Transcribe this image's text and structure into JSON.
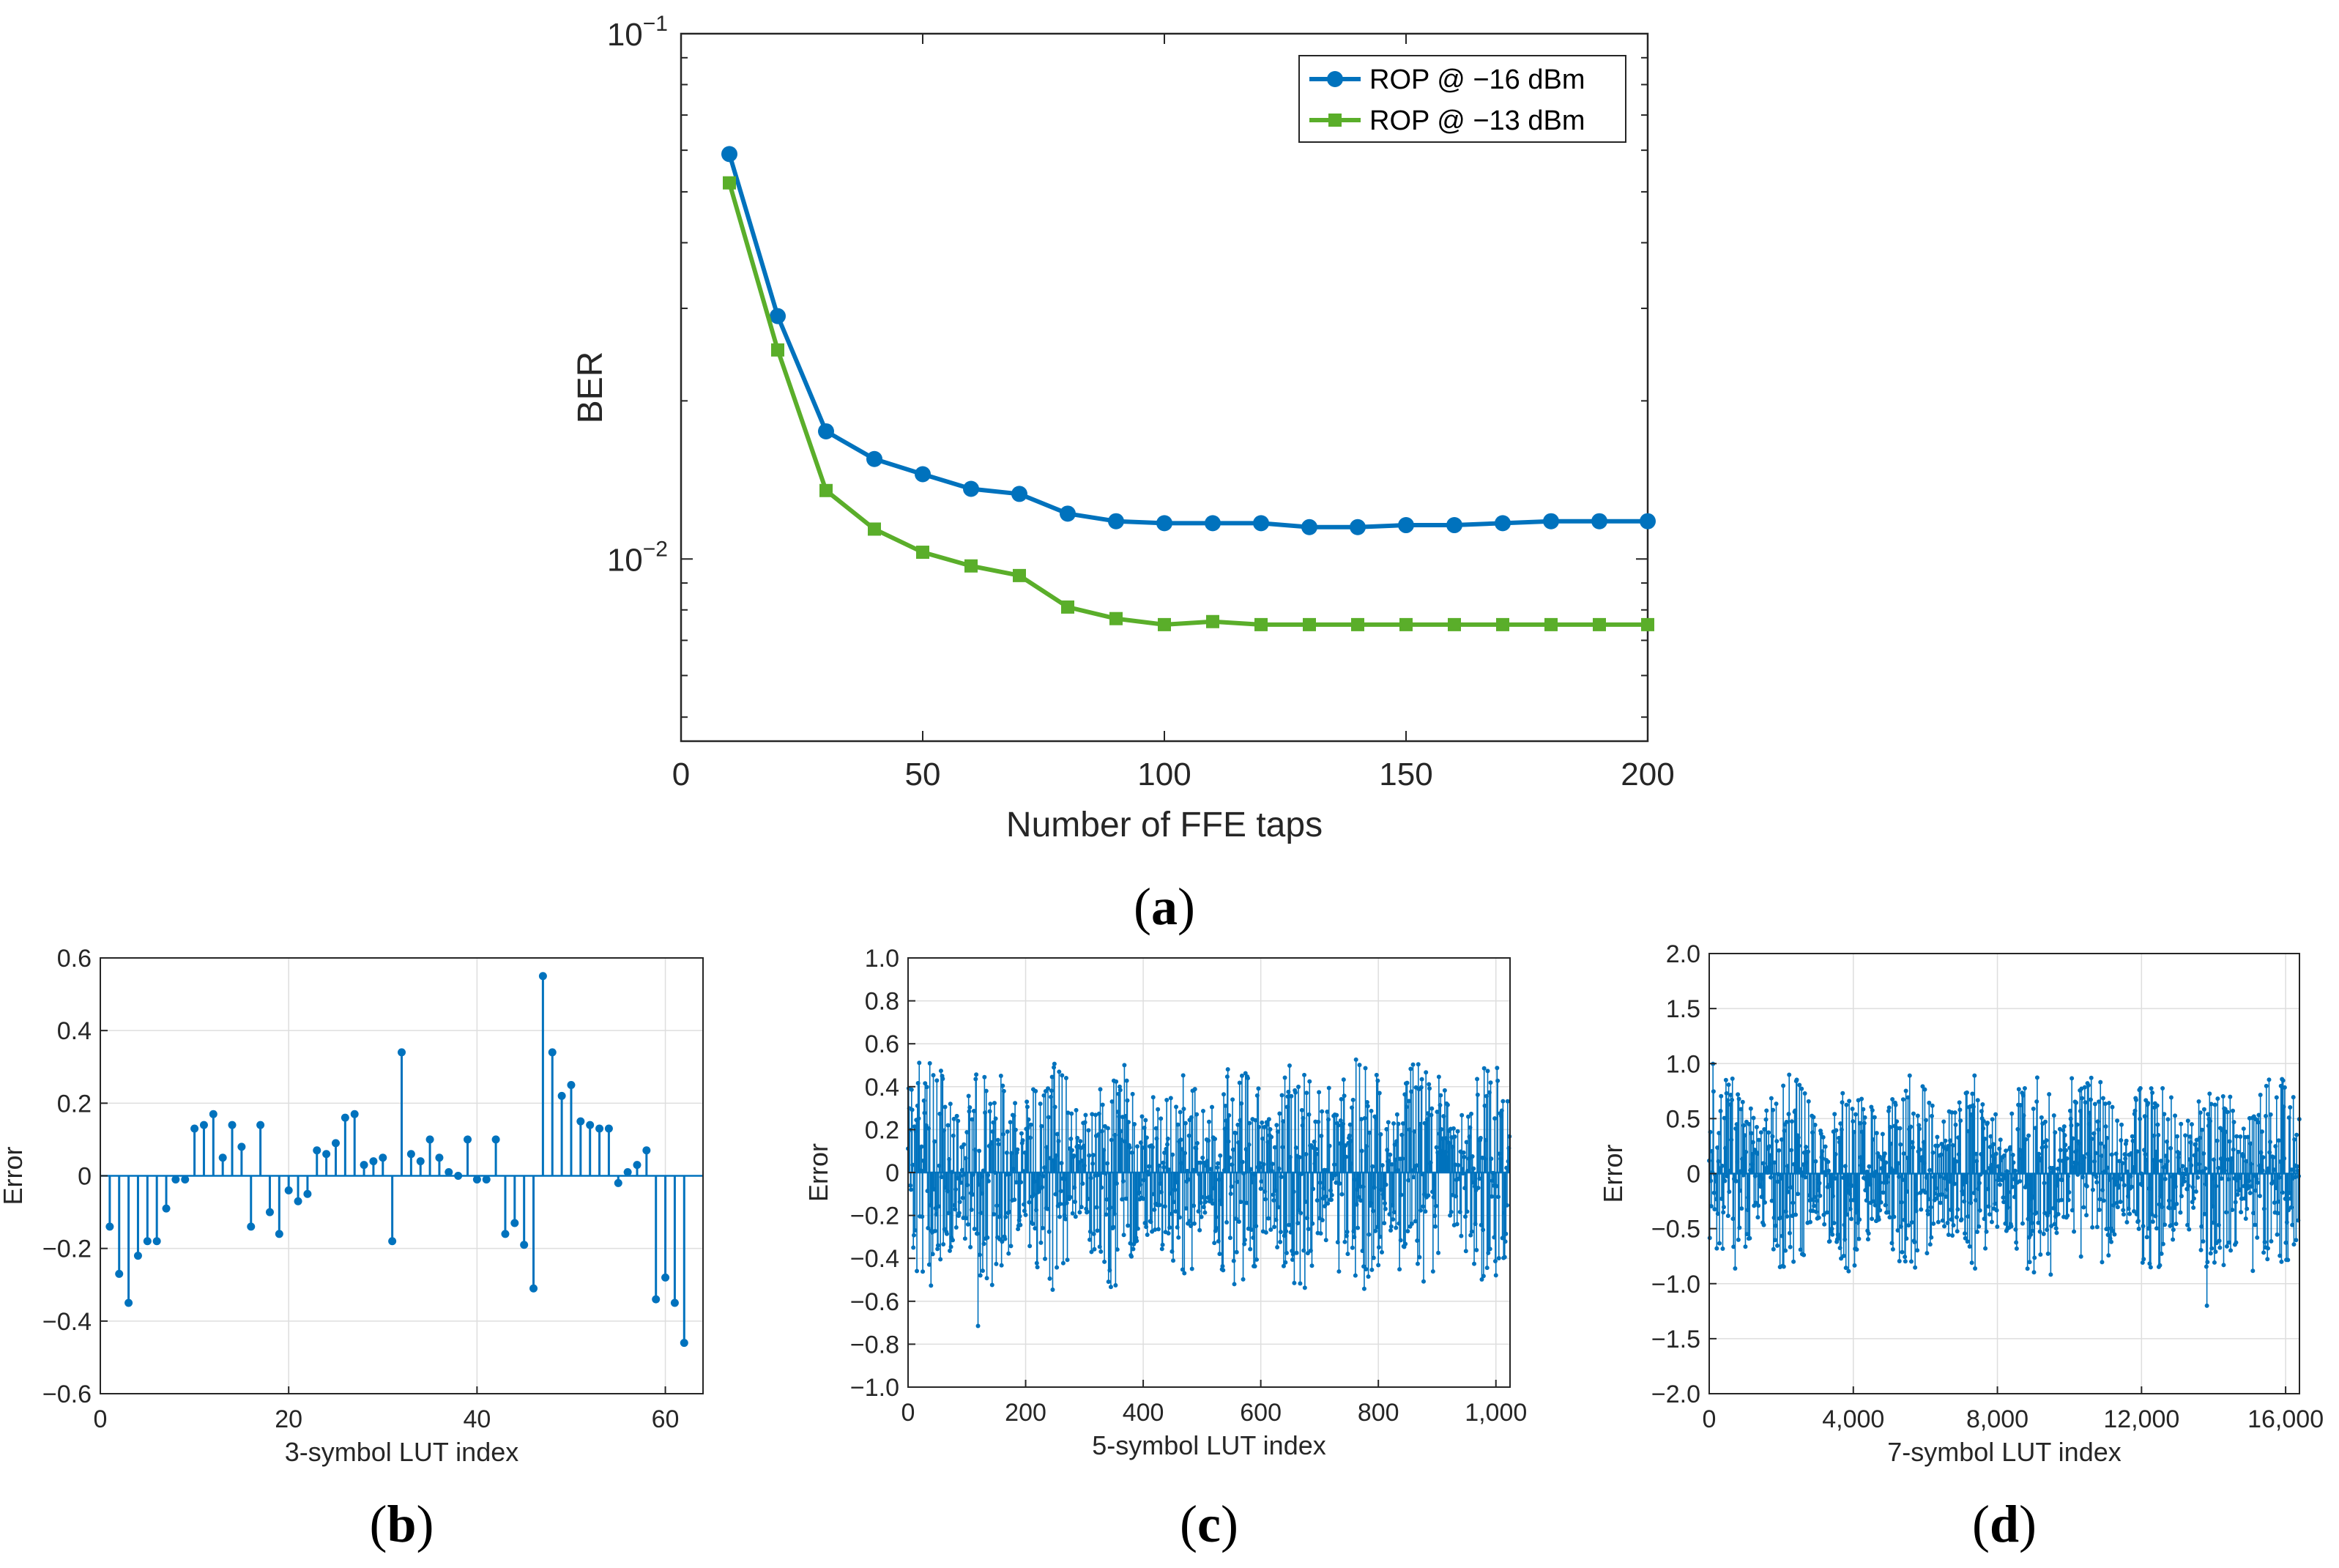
{
  "colors": {
    "blue": "#0072BD",
    "green": "#5AAE2A",
    "stem": "#0072BD",
    "grid": "#DEDEDE",
    "axis": "#262626"
  },
  "chart_data": [
    {
      "id": "a",
      "type": "line",
      "panel_label": "a",
      "xlabel": "Number of FFE taps",
      "ylabel": "BER",
      "xlim": [
        0,
        200
      ],
      "ylim": [
        0.0045,
        0.1
      ],
      "yscale": "log",
      "grid": false,
      "x_ticks": [
        0,
        50,
        100,
        150,
        200
      ],
      "x_tick_labels": [
        "0",
        "50",
        "100",
        "150",
        "200"
      ],
      "y_tick_labels": [
        {
          "value": 0.1,
          "base": "10",
          "exp": "−1"
        },
        {
          "value": 0.01,
          "base": "10",
          "exp": "−2"
        }
      ],
      "legend_position": "top-right",
      "x": [
        10,
        20,
        30,
        40,
        50,
        60,
        70,
        80,
        90,
        100,
        110,
        120,
        130,
        140,
        150,
        160,
        170,
        180,
        190,
        200
      ],
      "series": [
        {
          "name": "ROP @ −16 dBm",
          "marker": "circle",
          "color": "#0072BD",
          "values": [
            0.059,
            0.029,
            0.0175,
            0.0155,
            0.0145,
            0.0136,
            0.0133,
            0.0122,
            0.0118,
            0.0117,
            0.0117,
            0.0117,
            0.0115,
            0.0115,
            0.0116,
            0.0116,
            0.0117,
            0.0118,
            0.0118,
            0.0118
          ]
        },
        {
          "name": "ROP @ −13 dBm",
          "marker": "square",
          "color": "#5AAE2A",
          "values": [
            0.052,
            0.025,
            0.0135,
            0.0114,
            0.0103,
            0.0097,
            0.0093,
            0.0081,
            0.0077,
            0.0075,
            0.0076,
            0.0075,
            0.0075,
            0.0075,
            0.0075,
            0.0075,
            0.0075,
            0.0075,
            0.0075,
            0.0075
          ]
        }
      ]
    },
    {
      "id": "b",
      "type": "stem",
      "panel_label": "b",
      "xlabel": "3-symbol LUT index",
      "ylabel": "Error",
      "xlim": [
        0,
        64
      ],
      "ylim": [
        -0.6,
        0.6
      ],
      "grid": true,
      "x_ticks": [
        0,
        20,
        40,
        60
      ],
      "x_tick_labels": [
        "0",
        "20",
        "40",
        "60"
      ],
      "y_ticks": [
        -0.6,
        -0.4,
        -0.2,
        0,
        0.2,
        0.4,
        0.6
      ],
      "y_tick_labels": [
        "−0.6",
        "−0.4",
        "−0.2",
        "0",
        "0.2",
        "0.4",
        "0.6"
      ],
      "values": [
        -0.14,
        -0.27,
        -0.35,
        -0.22,
        -0.18,
        -0.18,
        -0.09,
        -0.01,
        -0.01,
        0.13,
        0.14,
        0.17,
        0.05,
        0.14,
        0.08,
        -0.14,
        0.14,
        -0.1,
        -0.16,
        -0.04,
        -0.07,
        -0.05,
        0.07,
        0.06,
        0.09,
        0.16,
        0.17,
        0.03,
        0.04,
        0.05,
        -0.18,
        0.34,
        0.06,
        0.04,
        0.1,
        0.05,
        0.01,
        0.0,
        0.1,
        -0.01,
        -0.01,
        0.1,
        -0.16,
        -0.13,
        -0.19,
        -0.31,
        0.55,
        0.34,
        0.22,
        0.25,
        0.15,
        0.14,
        0.13,
        0.13,
        -0.02,
        0.01,
        0.03,
        0.07,
        -0.34,
        -0.28,
        -0.35,
        -0.46
      ]
    },
    {
      "id": "c",
      "type": "stem",
      "panel_label": "c",
      "xlabel": "5-symbol LUT index",
      "ylabel": "Error",
      "xlim": [
        0,
        1024
      ],
      "ylim": [
        -1.0,
        1.0
      ],
      "grid": true,
      "n_points": 1024,
      "amplitude": 0.55,
      "x_ticks": [
        0,
        200,
        400,
        600,
        800,
        1000
      ],
      "x_tick_labels": [
        "0",
        "200",
        "400",
        "600",
        "800",
        "1,000"
      ],
      "y_ticks": [
        -1.0,
        -0.8,
        -0.6,
        -0.4,
        -0.2,
        0,
        0.2,
        0.4,
        0.6,
        0.8,
        1.0
      ],
      "y_tick_labels": [
        "−1.0",
        "−0.8",
        "−0.6",
        "−0.4",
        "−0.2",
        "0",
        "0.2",
        "0.4",
        "0.6",
        "0.8",
        "1.0"
      ]
    },
    {
      "id": "d",
      "type": "stem",
      "panel_label": "d",
      "xlabel": "7-symbol LUT index",
      "ylabel": "Error",
      "xlim": [
        0,
        16384
      ],
      "ylim": [
        -2.0,
        2.0
      ],
      "grid": true,
      "n_points": 16384,
      "amplitude": 0.9,
      "x_ticks": [
        0,
        4000,
        8000,
        12000,
        16000
      ],
      "x_tick_labels": [
        "0",
        "4,000",
        "8,000",
        "12,000",
        "16,000"
      ],
      "y_ticks": [
        -2.0,
        -1.5,
        -1.0,
        -0.5,
        0,
        0.5,
        1.0,
        1.5,
        2.0
      ],
      "y_tick_labels": [
        "−2.0",
        "−1.5",
        "−1.0",
        "−0.5",
        "0",
        "0.5",
        "1.0",
        "1.5",
        "2.0"
      ]
    }
  ]
}
